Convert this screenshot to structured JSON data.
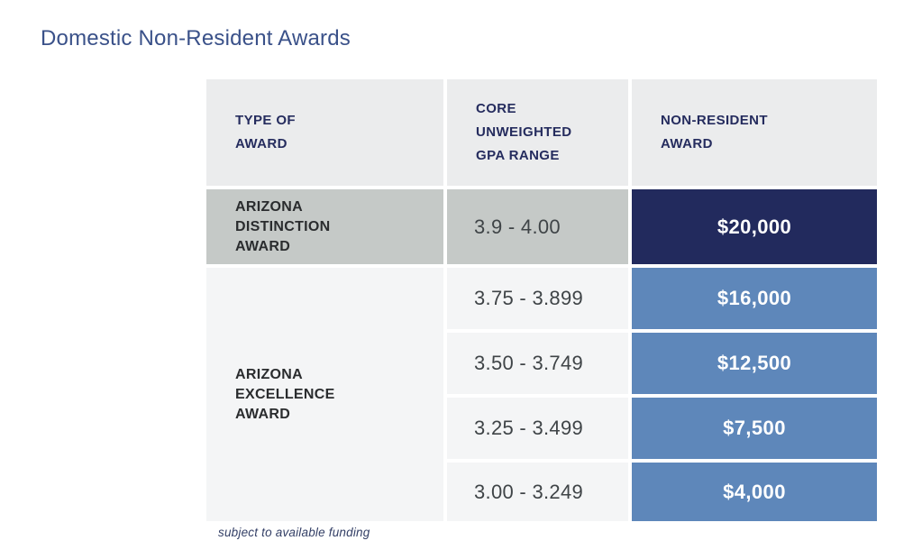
{
  "page": {
    "title": "Domestic Non-Resident Awards",
    "footnote": "subject to available funding"
  },
  "table": {
    "headers": {
      "type_of_award": "TYPE OF\nAWARD",
      "gpa_range": "CORE\nUNWEIGHTED\nGPA RANGE",
      "non_resident_award": "NON-RESIDENT\nAWARD"
    },
    "groups": [
      {
        "award_type": "ARIZONA\nDISTINCTION\nAWARD",
        "rows": [
          {
            "gpa": "3.9 - 4.00",
            "amount": "$20,000"
          }
        ]
      },
      {
        "award_type": "ARIZONA\nEXCELLENCE\nAWARD",
        "rows": [
          {
            "gpa": "3.75 - 3.899",
            "amount": "$16,000"
          },
          {
            "gpa": "3.50 - 3.749",
            "amount": "$12,500"
          },
          {
            "gpa": "3.25 - 3.499",
            "amount": "$7,500"
          },
          {
            "gpa": "3.00 - 3.249",
            "amount": "$4,000"
          }
        ]
      }
    ],
    "colors": {
      "title_text": "#3A5189",
      "header_bg": "#EBECED",
      "header_text": "#252C5E",
      "distinction_row_bg": "#C5C9C7",
      "distinction_amount_bg": "#222A5D",
      "excellence_row_bg": "#F4F5F6",
      "excellence_amount_bg": "#5E87BA",
      "award_name_text": "#2A2C2E",
      "gpa_text": "#3F4447",
      "amount_text": "#FFFFFF",
      "footnote_text": "#333F66"
    }
  }
}
